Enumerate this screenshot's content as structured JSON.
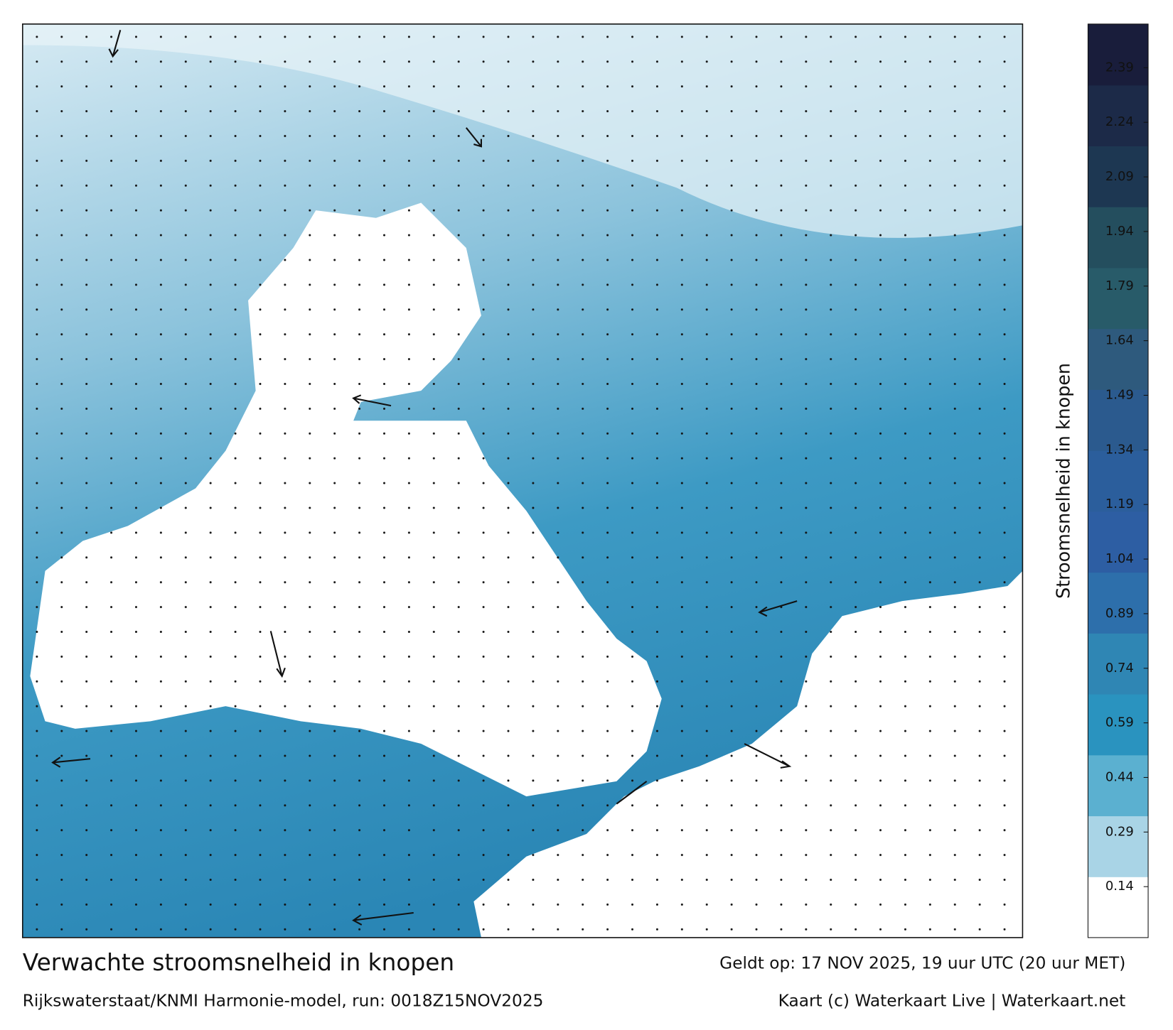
{
  "colorbar": {
    "label": "Stroomsnelheid in knopen",
    "lim": [
      0,
      2.51
    ],
    "ticks": [
      0.14,
      0.29,
      0.44,
      0.59,
      0.74,
      0.89,
      1.04,
      1.19,
      1.34,
      1.49,
      1.64,
      1.79,
      1.94,
      2.09,
      2.24,
      2.39
    ],
    "colors": [
      "#ffffff",
      "#a9d4e6",
      "#5bb0d0",
      "#2a93bf",
      "#2f86b4",
      "#2d6fab",
      "#2d5ea3",
      "#2b5e9c",
      "#2b5a8e",
      "#2e5a7d",
      "#285b69",
      "#244e5e",
      "#1d3752",
      "#1c2a48",
      "#191d3b"
    ]
  },
  "footer": {
    "title": "Verwachte stroomsnelheid in knopen",
    "subtitle": "Rijkswaterstaat/KNMI Harmonie-model, run: 0018Z15NOV2025",
    "valid": "Geldt op: 17 NOV 2025, 19 uur UTC (20 uur MET)",
    "credit": "Kaart (c) Waterkaart Live | Waterkaart.net"
  }
}
